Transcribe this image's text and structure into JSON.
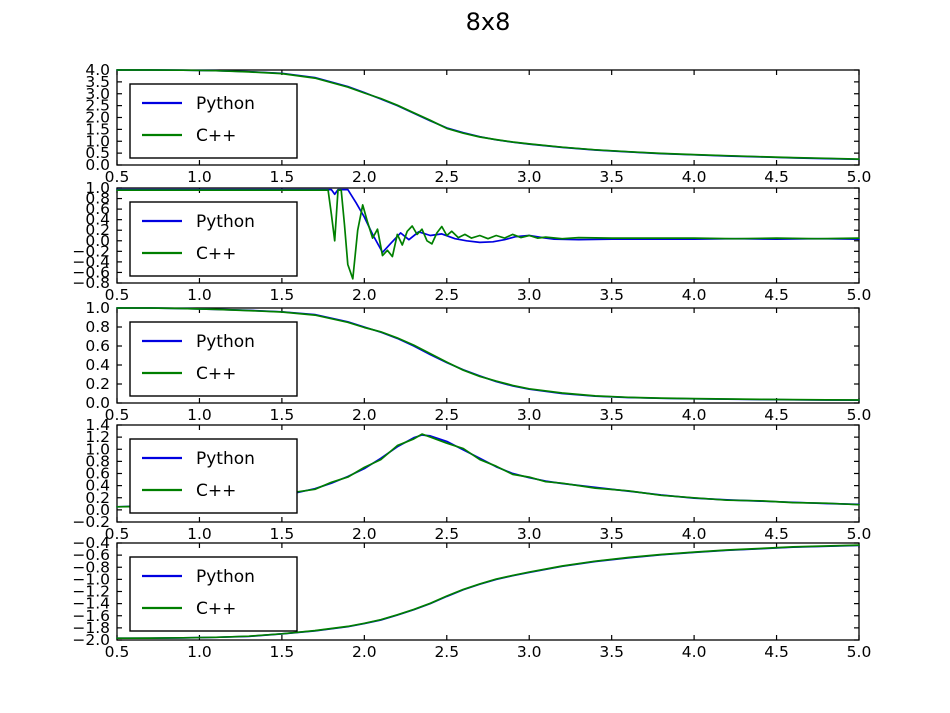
{
  "chart_data": {
    "type": "line",
    "title": "8x8",
    "xlim": [
      0.5,
      5.0
    ],
    "xtick_values": [
      0.5,
      1.0,
      1.5,
      2.0,
      2.5,
      3.0,
      3.5,
      4.0,
      4.5,
      5.0
    ],
    "xtick_labels": [
      "0.5",
      "1.0",
      "1.5",
      "2.0",
      "2.5",
      "3.0",
      "3.5",
      "4.0",
      "4.5",
      "5.0"
    ],
    "legend": {
      "position": "upper left",
      "python_label": "Python",
      "cpp_label": "C++"
    },
    "colors": {
      "python": "#0000e0",
      "cpp": "#007f00",
      "axis": "#000000",
      "background": "#ffffff"
    },
    "subplots": [
      {
        "id": 1,
        "ylim": [
          0.0,
          4.0
        ],
        "ytick_values": [
          4.0,
          3.5,
          3.0,
          2.5,
          2.0,
          1.5,
          1.0,
          0.5,
          0.0
        ],
        "ytick_labels": [
          "4.0",
          "3.5",
          "3.0",
          "2.5",
          "2.0",
          "1.5",
          "1.0",
          "0.5",
          "0.0"
        ],
        "series": {
          "python": {
            "x": [
              0.5,
              0.7,
              0.9,
              1.1,
              1.3,
              1.5,
              1.7,
              1.9,
              2.0,
              2.1,
              2.2,
              2.3,
              2.4,
              2.5,
              2.6,
              2.7,
              2.8,
              2.9,
              3.0,
              3.2,
              3.4,
              3.6,
              3.8,
              4.0,
              4.2,
              4.4,
              4.6,
              4.8,
              5.0
            ],
            "y": [
              4.0,
              4.0,
              3.99,
              3.97,
              3.93,
              3.86,
              3.68,
              3.3,
              3.05,
              2.78,
              2.5,
              2.18,
              1.86,
              1.56,
              1.36,
              1.19,
              1.06,
              0.96,
              0.88,
              0.74,
              0.63,
              0.55,
              0.48,
              0.43,
              0.38,
              0.34,
              0.3,
              0.27,
              0.24
            ]
          },
          "cpp": {
            "x": [
              0.5,
              0.7,
              0.9,
              1.1,
              1.3,
              1.5,
              1.7,
              1.9,
              2.0,
              2.1,
              2.2,
              2.3,
              2.4,
              2.5,
              2.6,
              2.7,
              2.8,
              2.9,
              3.0,
              3.2,
              3.4,
              3.6,
              3.8,
              4.0,
              4.2,
              4.4,
              4.6,
              4.8,
              5.0
            ],
            "y": [
              4.0,
              4.0,
              3.99,
              3.97,
              3.92,
              3.85,
              3.66,
              3.28,
              3.03,
              2.8,
              2.52,
              2.2,
              1.88,
              1.54,
              1.34,
              1.18,
              1.07,
              0.97,
              0.89,
              0.75,
              0.64,
              0.56,
              0.49,
              0.44,
              0.39,
              0.35,
              0.31,
              0.28,
              0.25
            ]
          }
        }
      },
      {
        "id": 2,
        "ylim": [
          -0.8,
          1.0
        ],
        "ytick_values": [
          1.0,
          0.8,
          0.6,
          0.4,
          0.2,
          0.0,
          -0.2,
          -0.4,
          -0.6,
          -0.8
        ],
        "ytick_labels": [
          "1.0",
          "0.8",
          "0.6",
          "0.4",
          "0.2",
          "0.0",
          "−0.2",
          "−0.4",
          "−0.6",
          "−0.8"
        ],
        "series": {
          "python": {
            "x": [
              0.5,
              0.9,
              1.3,
              1.6,
              1.75,
              1.8,
              1.82,
              1.84,
              1.86,
              1.9,
              1.95,
              2.0,
              2.05,
              2.11,
              2.16,
              2.22,
              2.27,
              2.33,
              2.4,
              2.47,
              2.55,
              2.62,
              2.7,
              2.78,
              2.85,
              2.92,
              3.0,
              3.08,
              3.15,
              3.3,
              3.5,
              3.75,
              4.0,
              4.25,
              4.5,
              4.75,
              5.0
            ],
            "y": [
              0.97,
              0.97,
              0.97,
              0.97,
              0.97,
              0.97,
              0.88,
              0.97,
              0.97,
              0.97,
              0.72,
              0.45,
              0.12,
              -0.22,
              -0.05,
              0.15,
              0.02,
              0.17,
              0.1,
              0.13,
              0.04,
              0.0,
              -0.03,
              -0.02,
              0.02,
              0.08,
              0.1,
              0.06,
              0.03,
              0.02,
              0.03,
              0.03,
              0.03,
              0.04,
              0.03,
              0.04,
              0.03
            ]
          },
          "cpp": {
            "x": [
              0.5,
              0.9,
              1.3,
              1.6,
              1.75,
              1.78,
              1.8,
              1.82,
              1.84,
              1.86,
              1.88,
              1.9,
              1.93,
              1.96,
              1.99,
              2.02,
              2.05,
              2.08,
              2.11,
              2.14,
              2.17,
              2.2,
              2.23,
              2.26,
              2.29,
              2.32,
              2.35,
              2.38,
              2.41,
              2.44,
              2.47,
              2.5,
              2.53,
              2.57,
              2.61,
              2.65,
              2.7,
              2.75,
              2.8,
              2.85,
              2.9,
              2.95,
              3.0,
              3.05,
              3.1,
              3.2,
              3.3,
              3.5,
              3.75,
              4.0,
              4.25,
              4.5,
              4.75,
              5.0
            ],
            "y": [
              0.96,
              0.96,
              0.96,
              0.96,
              0.96,
              0.96,
              0.5,
              0.0,
              0.96,
              0.96,
              0.3,
              -0.45,
              -0.72,
              0.2,
              0.68,
              0.35,
              0.05,
              0.22,
              -0.28,
              -0.18,
              -0.3,
              0.12,
              -0.08,
              0.18,
              0.28,
              0.12,
              0.22,
              0.0,
              -0.06,
              0.15,
              0.27,
              0.1,
              0.18,
              0.06,
              0.12,
              0.05,
              0.1,
              0.04,
              0.1,
              0.05,
              0.12,
              0.06,
              0.1,
              0.05,
              0.07,
              0.04,
              0.06,
              0.05,
              0.05,
              0.05,
              0.04,
              0.05,
              0.04,
              0.05
            ]
          }
        }
      },
      {
        "id": 3,
        "ylim": [
          0.0,
          1.0
        ],
        "ytick_values": [
          1.0,
          0.8,
          0.6,
          0.4,
          0.2,
          0.0
        ],
        "ytick_labels": [
          "1.0",
          "0.8",
          "0.6",
          "0.4",
          "0.2",
          "0.0"
        ],
        "series": {
          "python": {
            "x": [
              0.5,
              0.7,
              0.9,
              1.1,
              1.3,
              1.5,
              1.7,
              1.9,
              2.0,
              2.1,
              2.2,
              2.3,
              2.4,
              2.5,
              2.6,
              2.7,
              2.8,
              2.9,
              3.0,
              3.2,
              3.4,
              3.6,
              3.8,
              4.0,
              4.2,
              4.4,
              4.6,
              4.8,
              5.0
            ],
            "y": [
              1.0,
              1.0,
              0.995,
              0.985,
              0.975,
              0.96,
              0.93,
              0.855,
              0.8,
              0.745,
              0.68,
              0.6,
              0.51,
              0.425,
              0.35,
              0.285,
              0.225,
              0.18,
              0.145,
              0.1,
              0.072,
              0.058,
              0.05,
              0.044,
              0.04,
              0.037,
              0.034,
              0.032,
              0.03
            ]
          },
          "cpp": {
            "x": [
              0.5,
              0.7,
              0.9,
              1.1,
              1.3,
              1.5,
              1.7,
              1.9,
              2.0,
              2.1,
              2.2,
              2.3,
              2.4,
              2.5,
              2.6,
              2.7,
              2.8,
              2.9,
              3.0,
              3.2,
              3.4,
              3.6,
              3.8,
              4.0,
              4.2,
              4.4,
              4.6,
              4.8,
              5.0
            ],
            "y": [
              1.0,
              1.0,
              0.995,
              0.985,
              0.973,
              0.958,
              0.925,
              0.85,
              0.795,
              0.75,
              0.685,
              0.61,
              0.52,
              0.43,
              0.345,
              0.28,
              0.23,
              0.185,
              0.15,
              0.105,
              0.075,
              0.06,
              0.052,
              0.046,
              0.042,
              0.038,
              0.036,
              0.033,
              0.032
            ]
          }
        }
      },
      {
        "id": 4,
        "ylim": [
          -0.2,
          1.4
        ],
        "ytick_values": [
          1.4,
          1.2,
          1.0,
          0.8,
          0.6,
          0.4,
          0.2,
          0.0,
          -0.2
        ],
        "ytick_labels": [
          "1.4",
          "1.2",
          "1.0",
          "0.8",
          "0.6",
          "0.4",
          "0.2",
          "0.0",
          "−0.2"
        ],
        "series": {
          "python": {
            "x": [
              0.5,
              0.7,
              0.9,
              1.1,
              1.3,
              1.5,
              1.6,
              1.7,
              1.8,
              1.9,
              2.0,
              2.1,
              2.2,
              2.3,
              2.35,
              2.4,
              2.5,
              2.6,
              2.7,
              2.8,
              2.9,
              3.0,
              3.1,
              3.2,
              3.4,
              3.6,
              3.8,
              4.0,
              4.2,
              4.4,
              4.6,
              4.8,
              5.0
            ],
            "y": [
              0.05,
              0.065,
              0.09,
              0.12,
              0.17,
              0.245,
              0.29,
              0.35,
              0.44,
              0.55,
              0.68,
              0.85,
              1.04,
              1.19,
              1.235,
              1.22,
              1.13,
              0.99,
              0.85,
              0.71,
              0.6,
              0.53,
              0.475,
              0.435,
              0.37,
              0.31,
              0.245,
              0.195,
              0.165,
              0.145,
              0.125,
              0.105,
              0.09
            ]
          },
          "cpp": {
            "x": [
              0.5,
              0.7,
              0.9,
              1.1,
              1.3,
              1.5,
              1.6,
              1.7,
              1.8,
              1.9,
              2.0,
              2.1,
              2.2,
              2.3,
              2.35,
              2.4,
              2.5,
              2.6,
              2.7,
              2.8,
              2.9,
              3.0,
              3.1,
              3.2,
              3.4,
              3.6,
              3.8,
              4.0,
              4.2,
              4.4,
              4.6,
              4.8,
              5.0
            ],
            "y": [
              0.05,
              0.06,
              0.09,
              0.125,
              0.175,
              0.25,
              0.3,
              0.34,
              0.455,
              0.54,
              0.7,
              0.83,
              1.06,
              1.17,
              1.25,
              1.2,
              1.1,
              1.01,
              0.83,
              0.72,
              0.585,
              0.54,
              0.465,
              0.44,
              0.36,
              0.315,
              0.24,
              0.2,
              0.16,
              0.15,
              0.12,
              0.11,
              0.085
            ]
          }
        }
      },
      {
        "id": 5,
        "ylim": [
          -2.0,
          -0.4
        ],
        "ytick_values": [
          -0.4,
          -0.6,
          -0.8,
          -1.0,
          -1.2,
          -1.4,
          -1.6,
          -1.8,
          -2.0
        ],
        "ytick_labels": [
          "−0.4",
          "−0.6",
          "−0.8",
          "−1.0",
          "−1.2",
          "−1.4",
          "−1.6",
          "−1.8",
          "−2.0"
        ],
        "series": {
          "python": {
            "x": [
              0.5,
              0.7,
              0.9,
              1.1,
              1.3,
              1.5,
              1.7,
              1.9,
              2.0,
              2.1,
              2.2,
              2.3,
              2.4,
              2.5,
              2.6,
              2.7,
              2.8,
              2.9,
              3.0,
              3.2,
              3.4,
              3.6,
              3.8,
              4.0,
              4.2,
              4.4,
              4.6,
              4.8,
              5.0
            ],
            "y": [
              -1.97,
              -1.97,
              -1.965,
              -1.955,
              -1.94,
              -1.9,
              -1.85,
              -1.78,
              -1.73,
              -1.67,
              -1.59,
              -1.5,
              -1.4,
              -1.28,
              -1.17,
              -1.08,
              -1.0,
              -0.94,
              -0.885,
              -0.785,
              -0.705,
              -0.645,
              -0.595,
              -0.555,
              -0.52,
              -0.495,
              -0.47,
              -0.455,
              -0.44
            ]
          },
          "cpp": {
            "x": [
              0.5,
              0.7,
              0.9,
              1.1,
              1.3,
              1.5,
              1.7,
              1.9,
              2.0,
              2.1,
              2.2,
              2.3,
              2.4,
              2.5,
              2.6,
              2.7,
              2.8,
              2.9,
              3.0,
              3.2,
              3.4,
              3.6,
              3.8,
              4.0,
              4.2,
              4.4,
              4.6,
              4.8,
              5.0
            ],
            "y": [
              -1.97,
              -1.968,
              -1.963,
              -1.955,
              -1.938,
              -1.898,
              -1.845,
              -1.775,
              -1.725,
              -1.665,
              -1.585,
              -1.495,
              -1.395,
              -1.275,
              -1.165,
              -1.075,
              -0.995,
              -0.935,
              -0.88,
              -0.78,
              -0.7,
              -0.64,
              -0.59,
              -0.55,
              -0.515,
              -0.49,
              -0.465,
              -0.45,
              -0.435
            ]
          }
        }
      }
    ]
  }
}
